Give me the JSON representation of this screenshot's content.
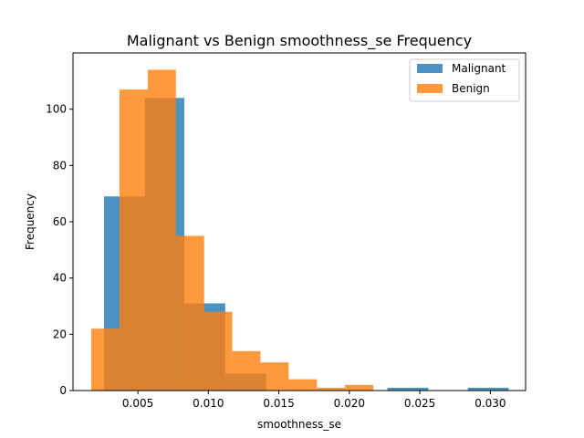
{
  "chart_data": {
    "type": "bar",
    "subtype": "histogram",
    "title": "Malignant vs Benign smoothness_se Frequency",
    "xlabel": "smoothness_se",
    "ylabel": "Frequency",
    "xlim": [
      0.0004,
      0.0325
    ],
    "ylim": [
      0,
      120
    ],
    "xticks": [
      0.005,
      0.01,
      0.015,
      0.02,
      0.025,
      0.03
    ],
    "xtick_labels": [
      "0.005",
      "0.010",
      "0.015",
      "0.020",
      "0.025",
      "0.030"
    ],
    "yticks": [
      0,
      20,
      40,
      60,
      80,
      100
    ],
    "ytick_labels": [
      "0",
      "20",
      "40",
      "60",
      "80",
      "100"
    ],
    "legend_position": "top-right",
    "series": [
      {
        "name": "Malignant",
        "color": "#1f77b4",
        "opacity": 0.8,
        "bin_edges": [
          0.0026,
          0.0055,
          0.0083,
          0.0112,
          0.0141,
          0.017,
          0.0198,
          0.0227,
          0.0256,
          0.0284,
          0.0313
        ],
        "counts": [
          69,
          104,
          31,
          6,
          0,
          0,
          0,
          1,
          0,
          1
        ]
      },
      {
        "name": "Benign",
        "color": "#ff7f0e",
        "opacity": 0.8,
        "bin_edges": [
          0.0017,
          0.0037,
          0.0057,
          0.0077,
          0.0097,
          0.0117,
          0.0137,
          0.0157,
          0.0177,
          0.0197,
          0.0217
        ],
        "counts": [
          22,
          107,
          114,
          55,
          28,
          14,
          10,
          4,
          1,
          2
        ]
      }
    ]
  }
}
